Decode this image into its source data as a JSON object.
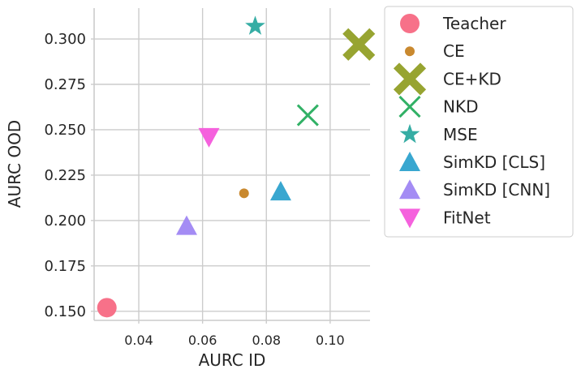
{
  "chart_data": {
    "type": "scatter",
    "xlabel": "AURC ID",
    "ylabel": "AURC OOD",
    "xlim": [
      0.026,
      0.1125
    ],
    "ylim": [
      0.145,
      0.317
    ],
    "xticks": [
      0.04,
      0.06,
      0.08,
      0.1
    ],
    "xtick_labels": [
      "0.04",
      "0.06",
      "0.08",
      "0.10"
    ],
    "yticks": [
      0.15,
      0.175,
      0.2,
      0.225,
      0.25,
      0.275,
      0.3
    ],
    "ytick_labels": [
      "0.150",
      "0.175",
      "0.200",
      "0.225",
      "0.250",
      "0.275",
      "0.300"
    ],
    "grid": true,
    "legend_position": "outside right",
    "series": [
      {
        "name": "Teacher",
        "marker": "circle",
        "color": "#f77189",
        "x": 0.03,
        "y": 0.152
      },
      {
        "name": "CE",
        "marker": "circle-small",
        "color": "#c9892f",
        "x": 0.073,
        "y": 0.215
      },
      {
        "name": "CE+KD",
        "marker": "x-filled",
        "color": "#97a431",
        "x": 0.109,
        "y": 0.297
      },
      {
        "name": "NKD",
        "marker": "x-thin",
        "color": "#32b166",
        "x": 0.093,
        "y": 0.258
      },
      {
        "name": "MSE",
        "marker": "star",
        "color": "#36ada4",
        "x": 0.0765,
        "y": 0.307
      },
      {
        "name": "SimKD [CLS]",
        "marker": "triangle-up",
        "color": "#39a7d0",
        "x": 0.0845,
        "y": 0.216
      },
      {
        "name": "SimKD [CNN]",
        "marker": "triangle-up",
        "color": "#a48cf4",
        "x": 0.055,
        "y": 0.197
      },
      {
        "name": "FitNet",
        "marker": "triangle-down",
        "color": "#f561dd",
        "x": 0.062,
        "y": 0.246
      }
    ]
  }
}
